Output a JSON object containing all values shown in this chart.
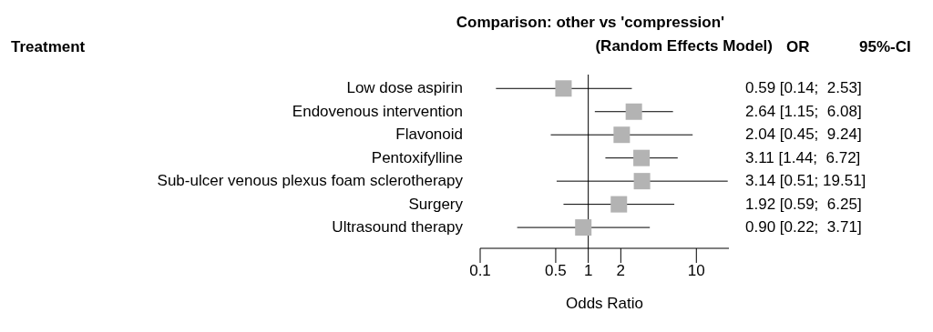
{
  "chart_data": {
    "type": "scatter",
    "orientation": "horizontal",
    "title": "Comparison: other vs 'compression'",
    "subtitle": "(Random Effects Model)",
    "xlabel": "Odds Ratio",
    "categories": [
      "Low dose aspirin",
      "Endovenous intervention",
      "Flavonoid",
      "Pentoxifylline",
      "Sub-ulcer venous plexus foam sclerotherapy",
      "Surgery",
      "Ultrasound therapy"
    ],
    "values": [
      0.59,
      2.64,
      2.04,
      3.11,
      3.14,
      1.92,
      0.9
    ],
    "errors": [
      [
        0.14,
        2.53
      ],
      [
        1.15,
        6.08
      ],
      [
        0.45,
        9.24
      ],
      [
        1.44,
        6.72
      ],
      [
        0.51,
        19.51
      ],
      [
        0.59,
        6.25
      ],
      [
        0.22,
        3.71
      ]
    ],
    "value_labels": [
      "0.59 [0.14;  2.53]",
      "2.64 [1.15;  6.08]",
      "2.04 [0.45;  9.24]",
      "3.11 [1.44;  6.72]",
      "3.14 [0.51; 19.51]",
      "1.92 [0.59;  6.25]",
      "0.90 [0.22;  3.71]"
    ],
    "color": "#b3b3b3",
    "marker": "square",
    "log": "x",
    "xlim": [
      0.1,
      20
    ],
    "xticks": [
      0.1,
      0.5,
      1,
      2,
      10
    ],
    "ref_lines": [
      {
        "axis": "x",
        "value": 1
      }
    ],
    "annotations": [
      "Treatment",
      "OR",
      "95%-CI"
    ]
  }
}
